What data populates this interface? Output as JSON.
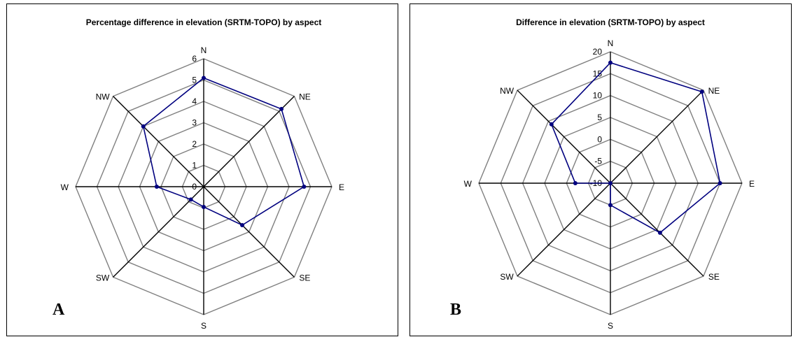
{
  "chart_data": [
    {
      "type": "radar",
      "title": "Percentage difference in elevation (SRTM-TOPO) by aspect",
      "panel_label": "A",
      "categories": [
        "N",
        "NE",
        "E",
        "SE",
        "S",
        "SW",
        "W",
        "NW"
      ],
      "rlim": [
        0,
        6
      ],
      "ticks": [
        "0",
        "1",
        "2",
        "3",
        "4",
        "5",
        "6"
      ],
      "series": [
        {
          "values": [
            5.1,
            5.15,
            4.7,
            2.55,
            0.95,
            0.85,
            2.2,
            4.0
          ]
        }
      ],
      "grid": true,
      "colors": {
        "series": "#00007f",
        "grid": "#808080",
        "axis": "#000000"
      }
    },
    {
      "type": "radar",
      "title": "Difference in elevation (SRTM-TOPO) by aspect",
      "panel_label": "B",
      "categories": [
        "N",
        "NE",
        "E",
        "SE",
        "S",
        "SW",
        "W",
        "NW"
      ],
      "rlim": [
        -10,
        20
      ],
      "ticks": [
        "-10",
        "-5",
        "0",
        "5",
        "10",
        "15",
        "20"
      ],
      "series": [
        {
          "values": [
            17.5,
            19.5,
            15.0,
            6.0,
            -5.0,
            -10.0,
            -2.0,
            9.0
          ]
        }
      ],
      "grid": true,
      "colors": {
        "series": "#00007f",
        "grid": "#808080",
        "axis": "#000000"
      }
    }
  ]
}
